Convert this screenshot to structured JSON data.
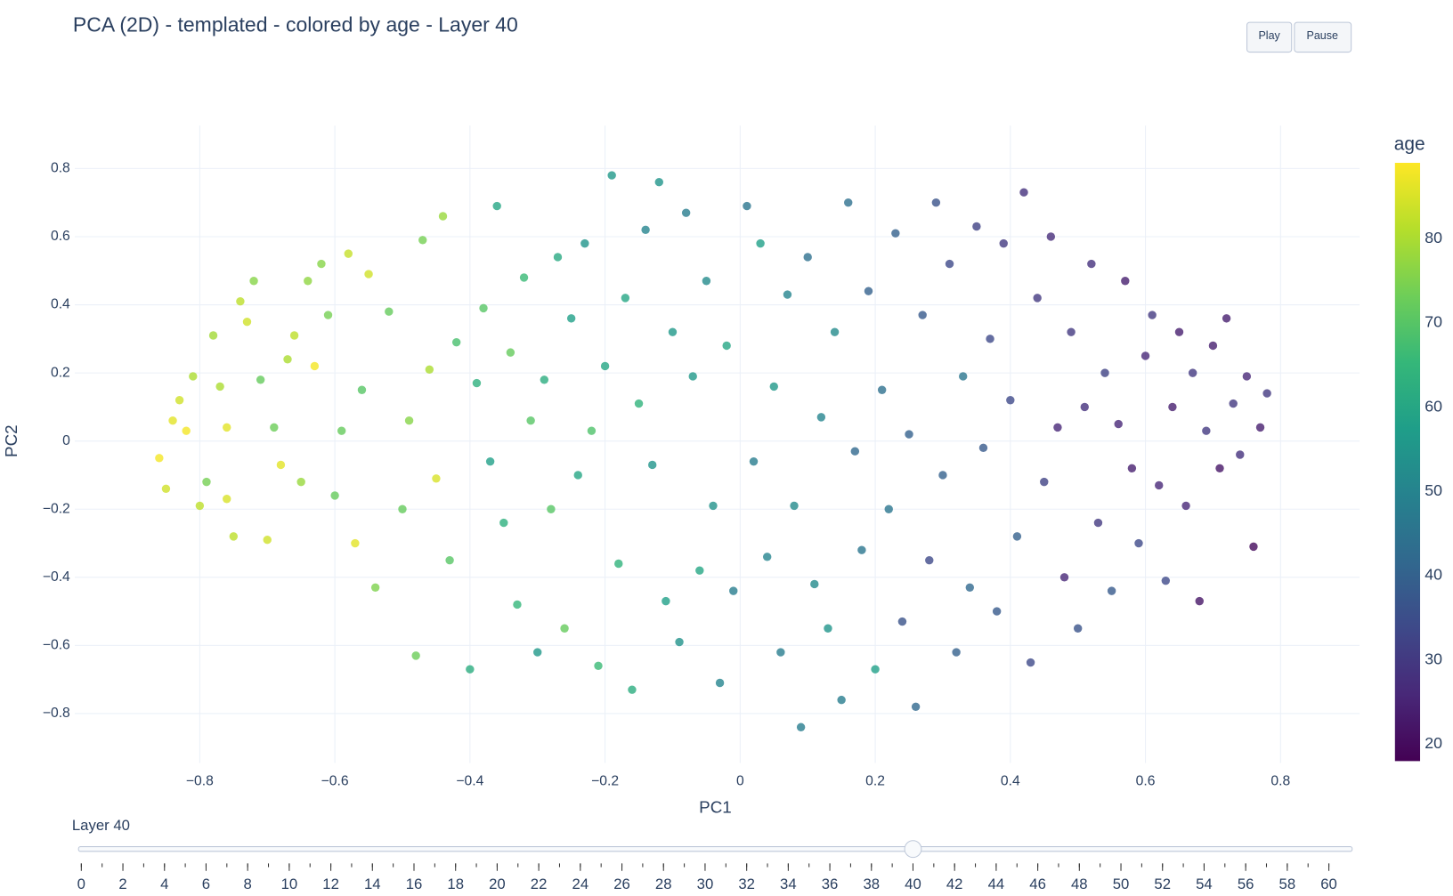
{
  "chart_data": {
    "type": "scatter",
    "title": "PCA (2D) - templated - colored by age - Layer 40",
    "x_label": "PC1",
    "y_label": "PC2",
    "colorbar_title": "age",
    "xlim": [
      -0.985,
      0.917
    ],
    "ylim": [
      -0.945,
      0.926
    ],
    "xticks": [
      {
        "value": -0.8,
        "label": "−0.8"
      },
      {
        "value": -0.6,
        "label": "−0.6"
      },
      {
        "value": -0.4,
        "label": "−0.4"
      },
      {
        "value": -0.2,
        "label": "−0.2"
      },
      0,
      0.2,
      0.4,
      0.6,
      0.8
    ],
    "yticks": [
      {
        "value": -0.8,
        "label": "−0.8"
      },
      {
        "value": -0.6,
        "label": "−0.6"
      },
      {
        "value": -0.4,
        "label": "−0.4"
      },
      {
        "value": -0.2,
        "label": "−0.2"
      },
      0,
      0.2,
      0.4,
      0.6,
      0.8
    ],
    "grid": true,
    "clim": [
      18,
      89
    ],
    "cticks": [
      20,
      30,
      40,
      50,
      60,
      70,
      80
    ],
    "colorscale": [
      "#440154",
      "#482878",
      "#3e4989",
      "#31688e",
      "#26828e",
      "#1f9e89",
      "#35b779",
      "#6ece58",
      "#b5de2b",
      "#fde725"
    ],
    "x": [
      -0.86,
      -0.84,
      -0.83,
      -0.85,
      -0.82,
      -0.81,
      -0.8,
      -0.79,
      -0.78,
      -0.77,
      -0.76,
      -0.76,
      -0.75,
      -0.74,
      -0.73,
      -0.72,
      -0.71,
      -0.7,
      -0.69,
      -0.68,
      -0.67,
      -0.66,
      -0.65,
      -0.64,
      -0.63,
      -0.62,
      -0.61,
      -0.6,
      -0.59,
      -0.58,
      -0.57,
      -0.56,
      -0.55,
      -0.54,
      -0.52,
      -0.5,
      -0.49,
      -0.48,
      -0.47,
      -0.46,
      -0.45,
      -0.44,
      -0.43,
      -0.42,
      -0.4,
      -0.39,
      -0.38,
      -0.37,
      -0.36,
      -0.35,
      -0.34,
      -0.33,
      -0.32,
      -0.31,
      -0.3,
      -0.29,
      -0.28,
      -0.27,
      -0.26,
      -0.25,
      -0.24,
      -0.23,
      -0.22,
      -0.21,
      -0.2,
      -0.19,
      -0.18,
      -0.17,
      -0.16,
      -0.15,
      -0.14,
      -0.13,
      -0.12,
      -0.11,
      -0.1,
      -0.09,
      -0.08,
      -0.07,
      -0.06,
      -0.05,
      -0.04,
      -0.03,
      -0.02,
      -0.01,
      0.01,
      0.02,
      0.03,
      0.04,
      0.05,
      0.06,
      0.07,
      0.08,
      0.09,
      0.1,
      0.11,
      0.12,
      0.13,
      0.14,
      0.15,
      0.16,
      0.17,
      0.18,
      0.19,
      0.2,
      0.21,
      0.22,
      0.23,
      0.24,
      0.25,
      0.26,
      0.27,
      0.28,
      0.29,
      0.3,
      0.31,
      0.32,
      0.33,
      0.34,
      0.35,
      0.36,
      0.37,
      0.38,
      0.39,
      0.4,
      0.41,
      0.42,
      0.43,
      0.44,
      0.45,
      0.46,
      0.47,
      0.48,
      0.49,
      0.5,
      0.51,
      0.52,
      0.53,
      0.54,
      0.55,
      0.56,
      0.57,
      0.58,
      0.59,
      0.6,
      0.61,
      0.62,
      0.63,
      0.64,
      0.65,
      0.66,
      0.67,
      0.68,
      0.69,
      0.7,
      0.71,
      0.72,
      0.73,
      0.74,
      0.75,
      0.76,
      0.77,
      0.78
    ],
    "y": [
      -0.05,
      0.06,
      0.12,
      -0.14,
      0.03,
      0.19,
      -0.19,
      -0.12,
      0.31,
      0.16,
      0.04,
      -0.17,
      -0.28,
      0.41,
      0.35,
      0.47,
      0.18,
      -0.29,
      0.04,
      -0.07,
      0.24,
      0.31,
      -0.12,
      0.47,
      0.22,
      0.52,
      0.37,
      -0.16,
      0.03,
      0.55,
      -0.3,
      0.15,
      0.49,
      -0.43,
      0.38,
      -0.2,
      0.06,
      -0.63,
      0.59,
      0.21,
      -0.11,
      0.66,
      -0.35,
      0.29,
      -0.67,
      0.17,
      0.39,
      -0.06,
      0.69,
      -0.24,
      0.26,
      -0.48,
      0.48,
      0.06,
      -0.62,
      0.18,
      -0.2,
      0.54,
      -0.55,
      0.36,
      -0.1,
      0.58,
      0.03,
      -0.66,
      0.22,
      0.78,
      -0.36,
      0.42,
      -0.73,
      0.11,
      0.62,
      -0.07,
      0.76,
      -0.47,
      0.32,
      -0.59,
      0.67,
      0.19,
      -0.38,
      0.47,
      -0.19,
      -0.71,
      0.28,
      -0.44,
      0.69,
      -0.06,
      0.58,
      -0.34,
      0.16,
      -0.62,
      0.43,
      -0.19,
      -0.84,
      0.54,
      -0.42,
      0.07,
      -0.55,
      0.32,
      -0.76,
      0.7,
      -0.03,
      -0.32,
      0.44,
      -0.67,
      0.15,
      -0.2,
      0.61,
      -0.53,
      0.02,
      -0.78,
      0.37,
      -0.35,
      0.7,
      -0.1,
      0.52,
      -0.62,
      0.19,
      -0.43,
      0.63,
      -0.02,
      0.3,
      -0.5,
      0.58,
      0.12,
      -0.28,
      0.73,
      -0.65,
      0.42,
      -0.12,
      0.6,
      0.04,
      -0.4,
      0.32,
      -0.55,
      0.1,
      0.52,
      -0.24,
      0.2,
      -0.44,
      0.05,
      0.47,
      -0.08,
      -0.3,
      0.25,
      0.37,
      -0.13,
      -0.41,
      0.1,
      0.32,
      -0.19,
      0.2,
      -0.47,
      0.03,
      0.28,
      -0.08,
      0.36,
      0.11,
      -0.04,
      0.19,
      -0.31,
      0.04,
      0.14
    ],
    "color_values": [
      88,
      86,
      84,
      84,
      88,
      80,
      82,
      74,
      79,
      80,
      86,
      85,
      82,
      82,
      84,
      76,
      72,
      84,
      73,
      86,
      80,
      82,
      78,
      77,
      88,
      76,
      74,
      72,
      72,
      83,
      86,
      70,
      84,
      75,
      72,
      72,
      76,
      73,
      74,
      80,
      85,
      78,
      70,
      68,
      62,
      63,
      70,
      58,
      60,
      63,
      72,
      65,
      66,
      70,
      56,
      62,
      70,
      61,
      72,
      58,
      60,
      55,
      69,
      66,
      60,
      56,
      64,
      60,
      62,
      64,
      50,
      55,
      55,
      58,
      56,
      54,
      48,
      56,
      60,
      52,
      54,
      50,
      60,
      48,
      46,
      48,
      58,
      50,
      56,
      48,
      50,
      52,
      48,
      44,
      52,
      50,
      55,
      52,
      48,
      44,
      42,
      46,
      40,
      58,
      44,
      46,
      40,
      36,
      40,
      42,
      38,
      34,
      36,
      40,
      34,
      40,
      46,
      42,
      32,
      38,
      34,
      38,
      30,
      34,
      40,
      28,
      34,
      30,
      32,
      27,
      26,
      26,
      30,
      36,
      28,
      28,
      30,
      32,
      38,
      26,
      24,
      24,
      34,
      26,
      30,
      26,
      34,
      24,
      24,
      26,
      30,
      22,
      30,
      24,
      22,
      24,
      30,
      28,
      26,
      20,
      24,
      30
    ]
  },
  "buttons": [
    "Play",
    "Pause"
  ],
  "slider": {
    "label": "Layer 40",
    "value": 40,
    "range": [
      0,
      60
    ],
    "ticks": [
      0,
      2,
      4,
      6,
      8,
      10,
      12,
      14,
      16,
      18,
      20,
      22,
      24,
      26,
      28,
      30,
      32,
      34,
      36,
      38,
      40,
      42,
      44,
      46,
      48,
      50,
      52,
      54,
      56,
      58,
      60
    ]
  }
}
